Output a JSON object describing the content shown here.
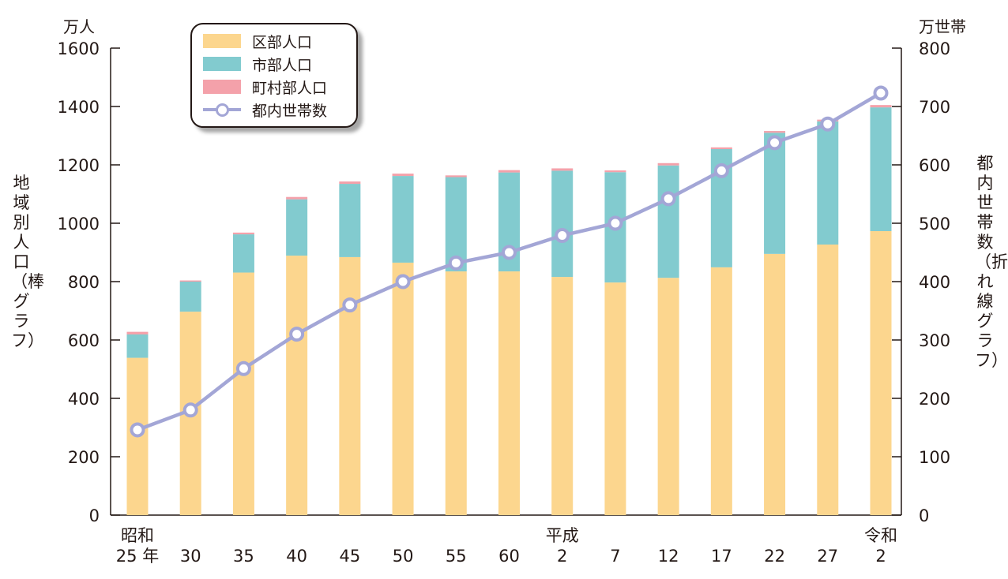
{
  "chart_data": {
    "type": "bar",
    "title": "",
    "left_axis": {
      "unit": "万人",
      "label": "地域別人口（棒グラフ）",
      "ylim": [
        0,
        1600
      ],
      "ticks": [
        0,
        200,
        400,
        600,
        800,
        1000,
        1200,
        1400,
        1600
      ]
    },
    "right_axis": {
      "unit": "万世帯",
      "label": "都内世帯数（折れ線グラフ）",
      "ylim": [
        0,
        800
      ],
      "ticks": [
        0,
        100,
        200,
        300,
        400,
        500,
        600,
        700,
        800
      ]
    },
    "categories": [
      {
        "era": "昭和",
        "year": "25 年"
      },
      {
        "era": "",
        "year": "30"
      },
      {
        "era": "",
        "year": "35"
      },
      {
        "era": "",
        "year": "40"
      },
      {
        "era": "",
        "year": "45"
      },
      {
        "era": "",
        "year": "50"
      },
      {
        "era": "",
        "year": "55"
      },
      {
        "era": "",
        "year": "60"
      },
      {
        "era": "平成",
        "year": "2"
      },
      {
        "era": "",
        "year": "7"
      },
      {
        "era": "",
        "year": "12"
      },
      {
        "era": "",
        "year": "17"
      },
      {
        "era": "",
        "year": "22"
      },
      {
        "era": "",
        "year": "27"
      },
      {
        "era": "令和",
        "year": "2"
      }
    ],
    "series": [
      {
        "name": "区部人口",
        "type": "bar",
        "stack": true,
        "color": "#fcd68e",
        "values": [
          539,
          697,
          831,
          889,
          884,
          865,
          835,
          835,
          816,
          797,
          813,
          849,
          895,
          927,
          973
        ]
      },
      {
        "name": "市部人口",
        "type": "bar",
        "stack": true,
        "color": "#82cbcf",
        "values": [
          80,
          103,
          131,
          193,
          251,
          297,
          323,
          339,
          364,
          378,
          385,
          405,
          415,
          422,
          424
        ]
      },
      {
        "name": "町村部人口",
        "type": "bar",
        "stack": true,
        "color": "#f4a1aa",
        "values": [
          9,
          4,
          6,
          8,
          8,
          8,
          6,
          8,
          8,
          6,
          8,
          6,
          6,
          6,
          8
        ]
      },
      {
        "name": "都内世帯数",
        "type": "line",
        "axis": "right",
        "color": "#a3a6d6",
        "values": [
          146,
          180,
          251,
          310,
          360,
          400,
          432,
          450,
          479,
          500,
          542,
          590,
          638,
          670,
          723
        ]
      }
    ],
    "legend": "top-left",
    "grid": false
  }
}
